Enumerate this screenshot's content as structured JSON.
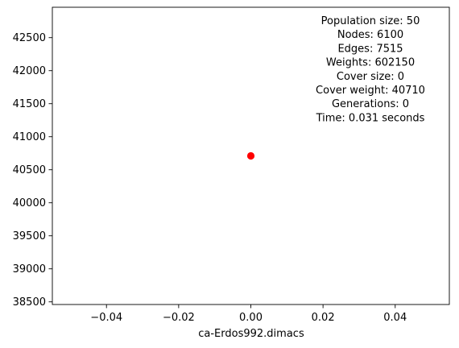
{
  "chart_data": {
    "type": "scatter",
    "title": "",
    "xlabel": "ca-Erdos992.dimacs",
    "ylabel": "",
    "xlim": [
      -0.055,
      0.055
    ],
    "ylim": [
      38460,
      42960
    ],
    "x_ticks": [
      -0.04,
      -0.02,
      0.0,
      0.02,
      0.04
    ],
    "x_tick_labels": [
      "−0.04",
      "−0.02",
      "0.00",
      "0.02",
      "0.04"
    ],
    "y_ticks": [
      38500,
      39000,
      39500,
      40000,
      40500,
      41000,
      41500,
      42000,
      42500
    ],
    "y_tick_labels": [
      "38500",
      "39000",
      "39500",
      "40000",
      "40500",
      "41000",
      "41500",
      "42000",
      "42500"
    ],
    "grid": false,
    "series": [
      {
        "x": [
          0.0
        ],
        "y": [
          40710
        ],
        "color": "#ff0000",
        "marker": "circle"
      }
    ],
    "annotation_lines": [
      "Population size: 50",
      "Nodes: 6100",
      "Edges: 7515",
      "Weights: 602150",
      "Cover size: 0",
      "Cover weight: 40710",
      "Generations: 0",
      "Time: 0.031 seconds"
    ]
  }
}
